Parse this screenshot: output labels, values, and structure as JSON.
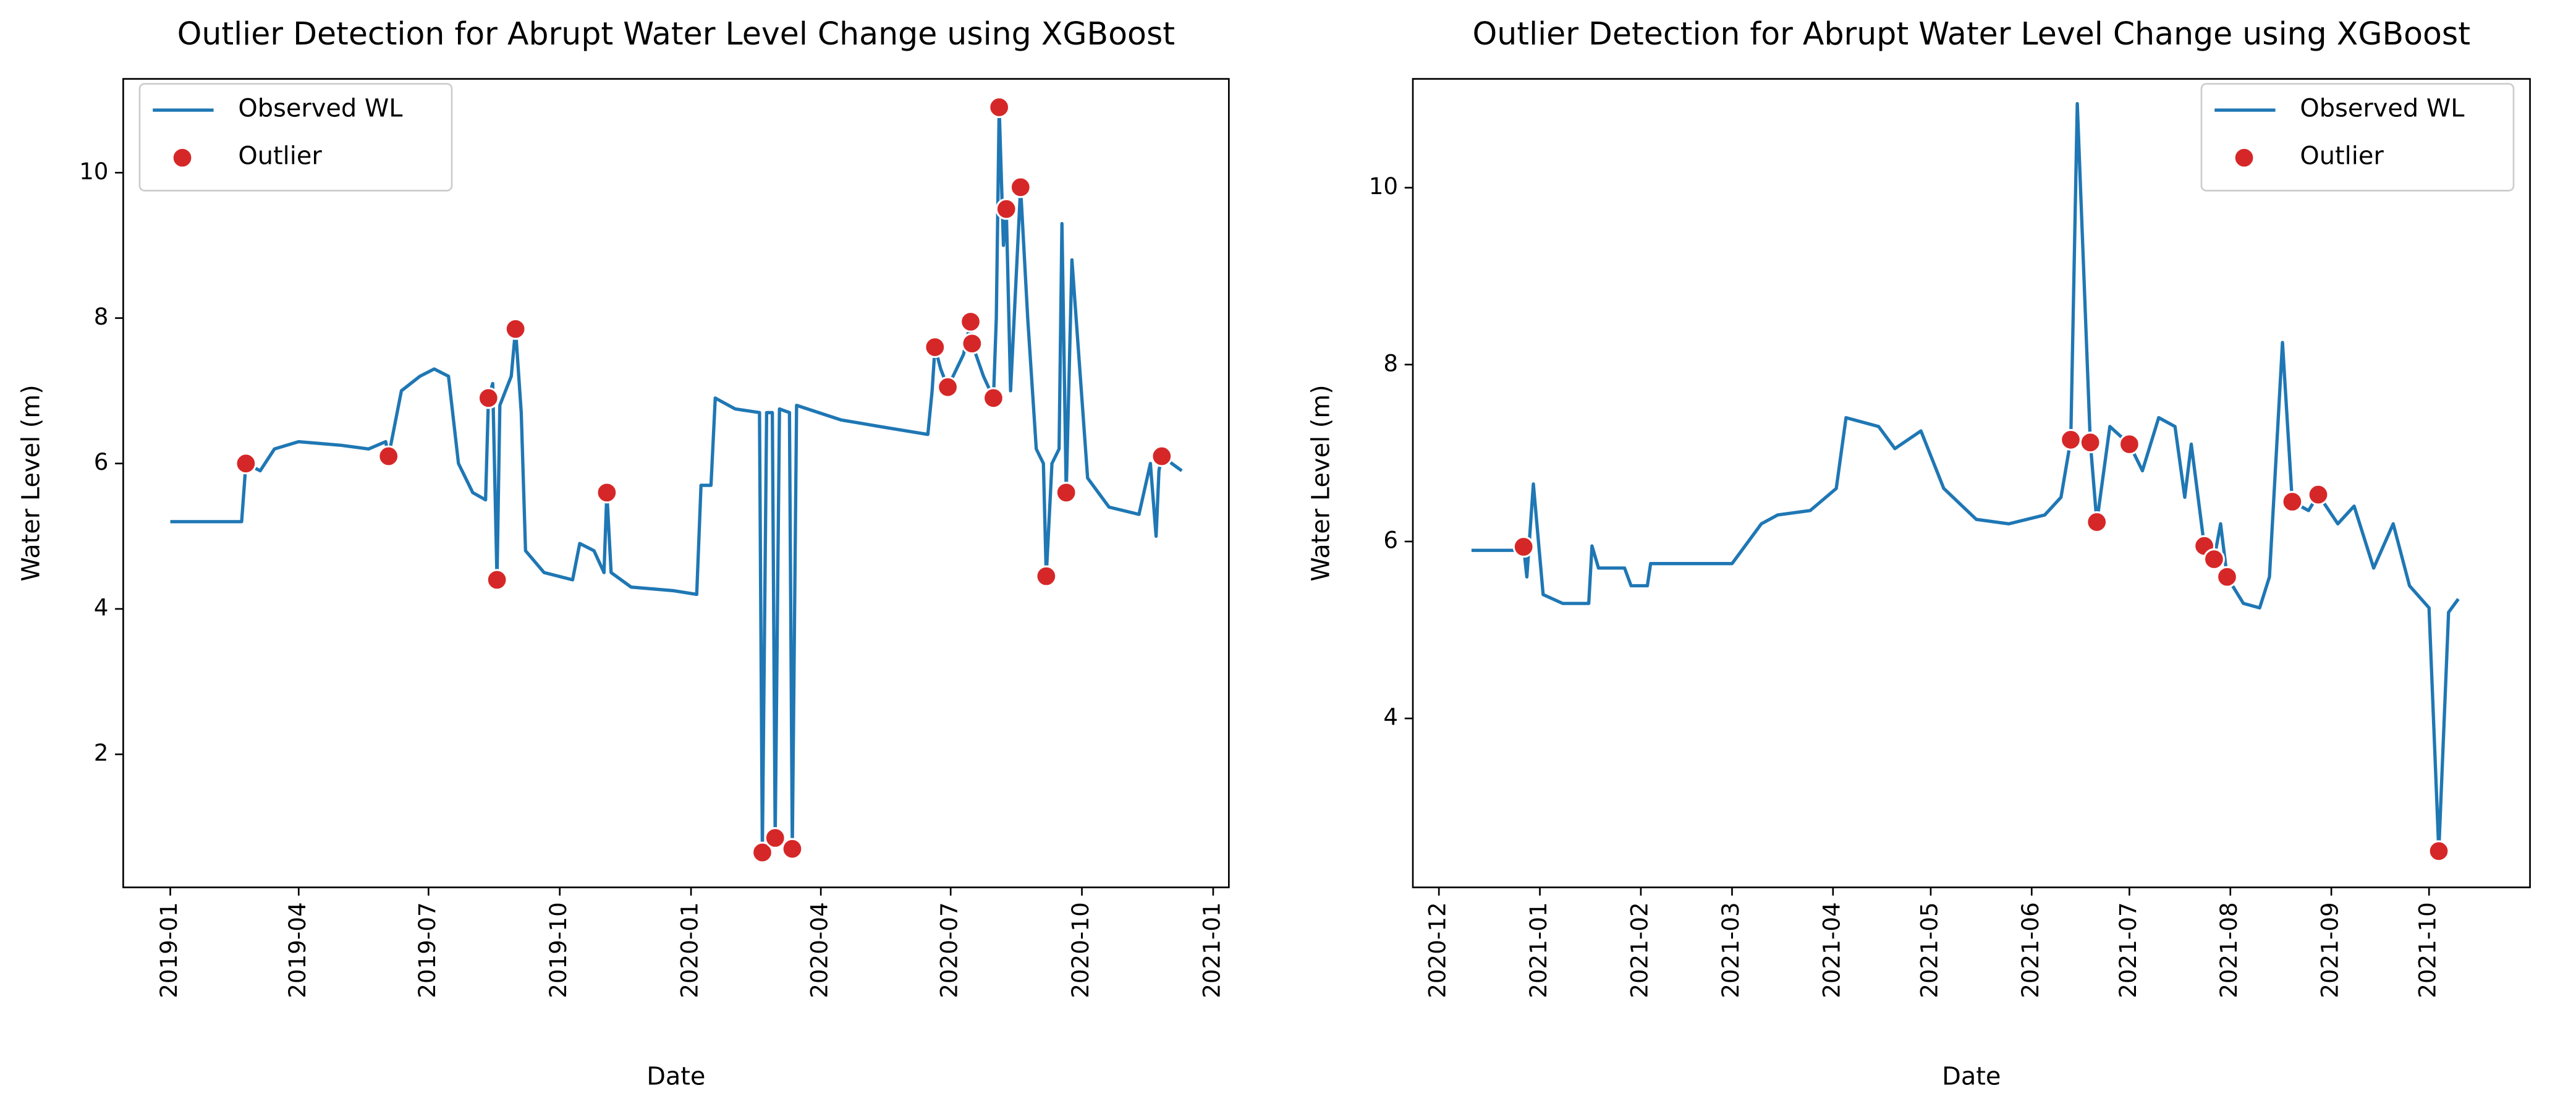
{
  "chart_data": [
    {
      "type": "line",
      "title": "Outlier Detection for Abrupt Water Level Change using XGBoost",
      "xlabel": "Date",
      "ylabel": "Water Level (m)",
      "legend": "upper left",
      "xlim": [
        "2018-11-29",
        "2021-01-12"
      ],
      "ylim": [
        0.17,
        11.29
      ],
      "yticks": [
        2,
        4,
        6,
        8,
        10
      ],
      "xticks": [
        {
          "value": "2019-01-01",
          "label": "2019-01"
        },
        {
          "value": "2019-04-01",
          "label": "2019-04"
        },
        {
          "value": "2019-07-01",
          "label": "2019-07"
        },
        {
          "value": "2019-10-01",
          "label": "2019-10"
        },
        {
          "value": "2020-01-01",
          "label": "2020-01"
        },
        {
          "value": "2020-04-01",
          "label": "2020-04"
        },
        {
          "value": "2020-07-01",
          "label": "2020-07"
        },
        {
          "value": "2020-10-01",
          "label": "2020-10"
        },
        {
          "value": "2021-01-01",
          "label": "2021-01"
        }
      ],
      "series": [
        {
          "name": "Observed WL",
          "type": "line",
          "color": "#1f77b4",
          "x": [
            "2019-01-01",
            "2019-02-20",
            "2019-02-23",
            "2019-03-05",
            "2019-03-15",
            "2019-04-01",
            "2019-05-01",
            "2019-05-20",
            "2019-06-01",
            "2019-06-03",
            "2019-06-12",
            "2019-06-25",
            "2019-07-05",
            "2019-07-15",
            "2019-07-22",
            "2019-08-01",
            "2019-08-10",
            "2019-08-12",
            "2019-08-15",
            "2019-08-18",
            "2019-08-20",
            "2019-08-28",
            "2019-08-31",
            "2019-09-04",
            "2019-09-07",
            "2019-09-20",
            "2019-10-10",
            "2019-10-15",
            "2019-10-25",
            "2019-11-01",
            "2019-11-03",
            "2019-11-06",
            "2019-11-20",
            "2019-12-20",
            "2020-01-05",
            "2020-01-08",
            "2020-01-15",
            "2020-01-18",
            "2020-02-01",
            "2020-02-18",
            "2020-02-20",
            "2020-02-23",
            "2020-02-27",
            "2020-02-29",
            "2020-03-03",
            "2020-03-10",
            "2020-03-12",
            "2020-03-15",
            "2020-04-15",
            "2020-05-15",
            "2020-06-15",
            "2020-06-18",
            "2020-06-20",
            "2020-06-24",
            "2020-06-29",
            "2020-07-10",
            "2020-07-15",
            "2020-07-16",
            "2020-07-24",
            "2020-07-31",
            "2020-08-02",
            "2020-08-04",
            "2020-08-07",
            "2020-08-09",
            "2020-08-12",
            "2020-08-19",
            "2020-08-24",
            "2020-08-30",
            "2020-09-04",
            "2020-09-06",
            "2020-09-10",
            "2020-09-15",
            "2020-09-17",
            "2020-09-20",
            "2020-09-24",
            "2020-10-05",
            "2020-10-20",
            "2020-11-10",
            "2020-11-18",
            "2020-11-22",
            "2020-11-24",
            "2020-11-26",
            "2020-12-10"
          ],
          "values": [
            5.2,
            5.2,
            6.0,
            5.9,
            6.2,
            6.3,
            6.25,
            6.2,
            6.3,
            6.1,
            7.0,
            7.2,
            7.3,
            7.2,
            6.0,
            5.6,
            5.5,
            6.9,
            7.1,
            4.4,
            6.8,
            7.2,
            7.85,
            6.7,
            4.8,
            4.5,
            4.4,
            4.9,
            4.8,
            4.5,
            5.6,
            4.5,
            4.3,
            4.25,
            4.2,
            5.7,
            5.7,
            6.9,
            6.75,
            6.7,
            0.65,
            6.7,
            6.7,
            0.85,
            6.75,
            6.7,
            0.7,
            6.8,
            6.6,
            6.5,
            6.4,
            7.0,
            7.6,
            7.3,
            7.05,
            7.5,
            7.95,
            7.65,
            7.2,
            6.9,
            8.0,
            10.9,
            9.0,
            9.5,
            7.0,
            9.8,
            8.0,
            6.2,
            6.0,
            4.45,
            6.0,
            6.2,
            9.3,
            5.6,
            8.8,
            5.8,
            5.4,
            5.3,
            6.0,
            5.0,
            5.9,
            6.1,
            5.9
          ]
        },
        {
          "name": "Outlier",
          "type": "scatter",
          "color": "#d62728",
          "x": [
            "2019-02-23",
            "2019-06-03",
            "2019-08-12",
            "2019-08-18",
            "2019-08-31",
            "2019-11-03",
            "2020-02-20",
            "2020-02-29",
            "2020-03-12",
            "2020-06-20",
            "2020-06-29",
            "2020-07-15",
            "2020-07-16",
            "2020-07-31",
            "2020-08-04",
            "2020-08-09",
            "2020-08-19",
            "2020-09-06",
            "2020-09-20",
            "2020-11-26"
          ],
          "values": [
            6.0,
            6.1,
            6.9,
            4.4,
            7.85,
            5.6,
            0.65,
            0.85,
            0.7,
            7.6,
            7.05,
            7.95,
            7.65,
            6.9,
            10.9,
            9.5,
            9.8,
            4.45,
            5.6,
            6.1
          ]
        }
      ]
    },
    {
      "type": "line",
      "title": "Outlier Detection for Abrupt Water Level Change using XGBoost",
      "xlabel": "Date",
      "ylabel": "Water Level (m)",
      "legend": "upper right",
      "xlim": [
        "2020-11-23",
        "2021-11-01"
      ],
      "ylim": [
        2.09,
        11.23
      ],
      "yticks": [
        4,
        6,
        8,
        10
      ],
      "xticks": [
        {
          "value": "2020-12-01",
          "label": "2020-12"
        },
        {
          "value": "2021-01-01",
          "label": "2021-01"
        },
        {
          "value": "2021-02-01",
          "label": "2021-02"
        },
        {
          "value": "2021-03-01",
          "label": "2021-03"
        },
        {
          "value": "2021-04-01",
          "label": "2021-04"
        },
        {
          "value": "2021-05-01",
          "label": "2021-05"
        },
        {
          "value": "2021-06-01",
          "label": "2021-06"
        },
        {
          "value": "2021-07-01",
          "label": "2021-07"
        },
        {
          "value": "2021-08-01",
          "label": "2021-08"
        },
        {
          "value": "2021-09-01",
          "label": "2021-09"
        },
        {
          "value": "2021-10-01",
          "label": "2021-10"
        }
      ],
      "series": [
        {
          "name": "Observed WL",
          "type": "line",
          "color": "#1f77b4",
          "x": [
            "2020-12-11",
            "2020-12-25",
            "2020-12-27",
            "2020-12-28",
            "2020-12-30",
            "2021-01-02",
            "2021-01-08",
            "2021-01-16",
            "2021-01-17",
            "2021-01-19",
            "2021-01-27",
            "2021-01-29",
            "2021-02-03",
            "2021-02-04",
            "2021-03-01",
            "2021-03-10",
            "2021-03-15",
            "2021-03-25",
            "2021-04-02",
            "2021-04-05",
            "2021-04-15",
            "2021-04-20",
            "2021-04-28",
            "2021-05-05",
            "2021-05-15",
            "2021-05-25",
            "2021-06-05",
            "2021-06-10",
            "2021-06-13",
            "2021-06-15",
            "2021-06-19",
            "2021-06-21",
            "2021-06-25",
            "2021-07-01",
            "2021-07-05",
            "2021-07-10",
            "2021-07-15",
            "2021-07-18",
            "2021-07-20",
            "2021-07-24",
            "2021-07-27",
            "2021-07-29",
            "2021-07-31",
            "2021-08-05",
            "2021-08-10",
            "2021-08-13",
            "2021-08-17",
            "2021-08-20",
            "2021-08-25",
            "2021-08-28",
            "2021-09-03",
            "2021-09-08",
            "2021-09-14",
            "2021-09-20",
            "2021-09-25",
            "2021-10-01",
            "2021-10-04",
            "2021-10-07",
            "2021-10-10"
          ],
          "values": [
            5.9,
            5.9,
            5.94,
            5.6,
            6.65,
            5.4,
            5.3,
            5.3,
            5.95,
            5.7,
            5.7,
            5.5,
            5.5,
            5.75,
            5.75,
            6.2,
            6.3,
            6.35,
            6.6,
            7.4,
            7.3,
            7.05,
            7.25,
            6.6,
            6.25,
            6.2,
            6.3,
            6.5,
            7.15,
            10.95,
            7.12,
            6.22,
            7.3,
            7.1,
            6.8,
            7.4,
            7.3,
            6.5,
            7.1,
            5.95,
            5.8,
            6.2,
            5.6,
            5.3,
            5.25,
            5.6,
            8.25,
            6.45,
            6.35,
            6.53,
            6.2,
            6.4,
            5.7,
            6.2,
            5.5,
            5.25,
            2.5,
            5.2,
            5.35
          ]
        },
        {
          "name": "Outlier",
          "type": "scatter",
          "color": "#d62728",
          "x": [
            "2020-12-27",
            "2021-06-13",
            "2021-06-19",
            "2021-06-21",
            "2021-07-01",
            "2021-07-24",
            "2021-07-27",
            "2021-07-31",
            "2021-08-20",
            "2021-08-28",
            "2021-10-04"
          ],
          "values": [
            5.94,
            7.15,
            7.12,
            6.22,
            7.1,
            5.95,
            5.8,
            5.6,
            6.45,
            6.53,
            2.5
          ]
        }
      ]
    }
  ]
}
